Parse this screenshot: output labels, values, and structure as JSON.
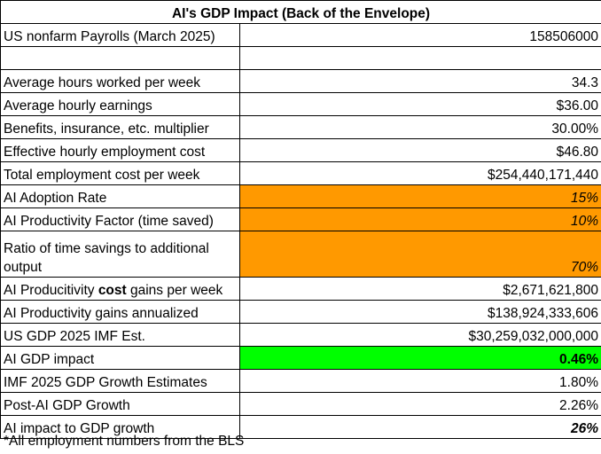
{
  "sheet": {
    "title": "AI's GDP Impact (Back of the Envelope)",
    "rows": [
      {
        "label": "US nonfarm Payrolls (March 2025)",
        "value": "158506000"
      },
      {
        "label": "",
        "value": ""
      },
      {
        "label": "Average hours worked per week",
        "value": "34.3"
      },
      {
        "label": "Average hourly earnings",
        "value": "$36.00"
      },
      {
        "label": "Benefits, insurance, etc. multiplier",
        "value": "30.00%"
      },
      {
        "label": "Effective hourly employment cost",
        "value": "$46.80"
      },
      {
        "label": "Total employment cost per week",
        "value": "$254,440,171,440"
      },
      {
        "label": "AI Adoption Rate",
        "value": "15%"
      },
      {
        "label": "AI Productivity Factor (time saved)",
        "value": "10%"
      },
      {
        "label": "Ratio of time savings to additional output",
        "value": "70%"
      },
      {
        "label_pre": "AI Producitivity ",
        "label_bold": "cost",
        "label_post": " gains per week",
        "value": "$2,671,621,800"
      },
      {
        "label": "AI Productivity gains annualized",
        "value": "$138,924,333,606"
      },
      {
        "label": "US GDP 2025 IMF Est.",
        "value": "$30,259,032,000,000"
      },
      {
        "label": "AI GDP impact",
        "value": "0.46%"
      },
      {
        "label": "IMF 2025 GDP Growth Estimates",
        "value": "1.80%"
      },
      {
        "label": "Post-AI GDP Growth",
        "value": "2.26%"
      },
      {
        "label": "AI impact to GDP growth",
        "value": "26%"
      }
    ],
    "footnote": "*All employment numbers from the BLS"
  },
  "colors": {
    "input_highlight": "#ff9900",
    "result_highlight": "#00ff00",
    "grid_lines": "#000000"
  }
}
